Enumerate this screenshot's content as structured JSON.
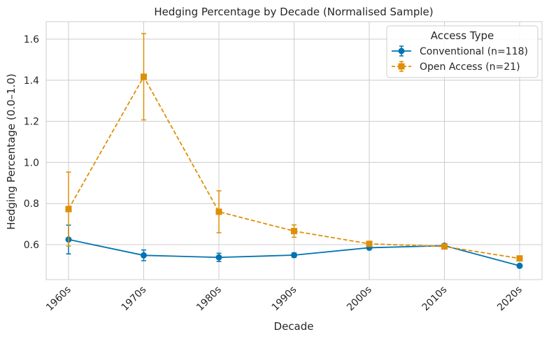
{
  "chart_data": {
    "type": "line",
    "title": "Hedging Percentage by Decade (Normalised Sample)",
    "xlabel": "Decade",
    "ylabel": "Hedging Percentage (0.0–1.0)",
    "categories": [
      "1960s",
      "1970s",
      "1980s",
      "1990s",
      "2000s",
      "2010s",
      "2020s"
    ],
    "ylim": [
      0.43,
      1.685
    ],
    "yticks": [
      0.6,
      0.8,
      1.0,
      1.2,
      1.4,
      1.6
    ],
    "ytick_labels": [
      "0.6",
      "0.8",
      "1.0",
      "1.2",
      "1.4",
      "1.6"
    ],
    "grid": true,
    "legend": {
      "title": "Access Type",
      "position": "top-right"
    },
    "series": [
      {
        "name": "Conventional (n=118)",
        "color": "#0173b2",
        "marker": "circle",
        "linestyle": "solid",
        "values": [
          0.625,
          0.548,
          0.538,
          0.549,
          0.585,
          0.595,
          0.497
        ],
        "err_low": [
          0.555,
          0.522,
          0.518,
          0.538,
          0.578,
          0.588,
          0.49
        ],
        "err_high": [
          0.695,
          0.574,
          0.558,
          0.56,
          0.592,
          0.602,
          0.504
        ]
      },
      {
        "name": "Open Access (n=21)",
        "color": "#de8f05",
        "marker": "square",
        "linestyle": "dashed",
        "values": [
          0.773,
          1.417,
          0.76,
          0.666,
          0.604,
          0.591,
          0.533
        ],
        "err_low": [
          0.593,
          1.207,
          0.658,
          0.636,
          0.596,
          0.583,
          0.525
        ],
        "err_high": [
          0.953,
          1.627,
          0.862,
          0.696,
          0.612,
          0.599,
          0.541
        ]
      }
    ]
  }
}
